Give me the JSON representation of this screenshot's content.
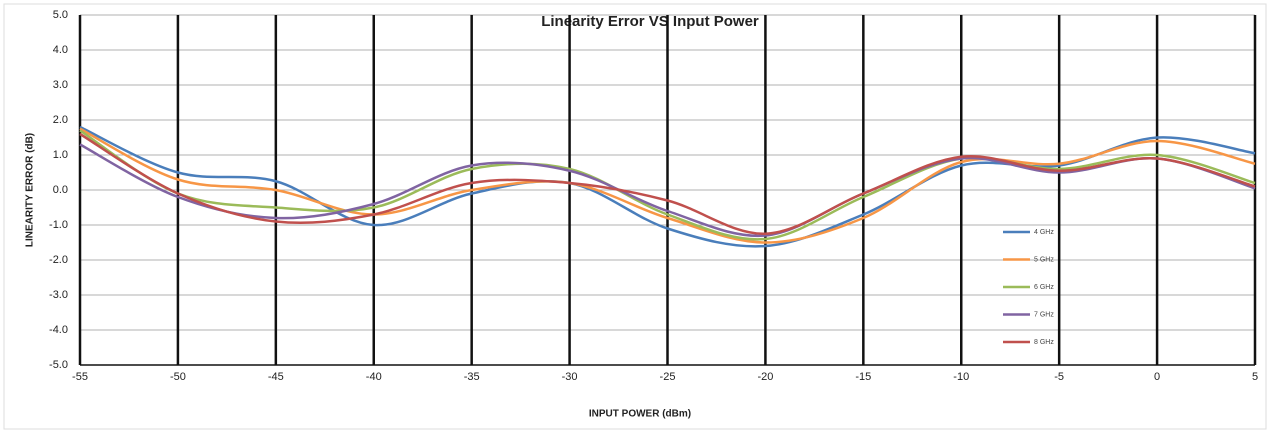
{
  "chart_data": {
    "type": "line",
    "title": "Linearity Error VS Input Power",
    "xlabel": "INPUT POWER (dBm)",
    "ylabel": "LINEARITY ERROR (dB)",
    "x": [
      -55,
      -50,
      -45,
      -40,
      -35,
      -30,
      -25,
      -20,
      -15,
      -10,
      -5,
      0,
      5
    ],
    "series": [
      {
        "name": "4 GHz",
        "color": "#4a7ebb",
        "values": [
          1.8,
          0.5,
          0.25,
          -1.0,
          -0.1,
          0.2,
          -1.1,
          -1.6,
          -0.7,
          0.7,
          0.7,
          1.5,
          1.05
        ]
      },
      {
        "name": "5 GHz",
        "color": "#f79646",
        "values": [
          1.75,
          0.3,
          0.0,
          -0.7,
          0.0,
          0.2,
          -0.8,
          -1.5,
          -0.8,
          0.8,
          0.75,
          1.4,
          0.75
        ]
      },
      {
        "name": "6 GHz",
        "color": "#9bbb59",
        "values": [
          1.7,
          -0.1,
          -0.5,
          -0.5,
          0.6,
          0.6,
          -0.7,
          -1.4,
          -0.2,
          0.9,
          0.6,
          1.0,
          0.2
        ]
      },
      {
        "name": "7 GHz",
        "color": "#8064a2",
        "values": [
          1.3,
          -0.2,
          -0.8,
          -0.4,
          0.7,
          0.55,
          -0.6,
          -1.3,
          -0.1,
          0.9,
          0.5,
          0.9,
          0.05
        ]
      },
      {
        "name": "8 GHz",
        "color": "#c0504d",
        "values": [
          1.6,
          -0.1,
          -0.9,
          -0.7,
          0.2,
          0.2,
          -0.3,
          -1.25,
          -0.1,
          0.95,
          0.55,
          0.9,
          0.1
        ]
      }
    ],
    "xlim": [
      -55,
      5
    ],
    "xticks": [
      -55,
      -50,
      -45,
      -40,
      -35,
      -30,
      -25,
      -20,
      -15,
      -10,
      -5,
      0,
      5
    ],
    "ylim": [
      -5,
      5
    ],
    "yticks": [
      {
        "value": -5,
        "label": "-5.0"
      },
      {
        "value": -4,
        "label": "-4.0"
      },
      {
        "value": -3,
        "label": "-3.0"
      },
      {
        "value": -2,
        "label": "-2.0"
      },
      {
        "value": -1,
        "label": "-1.0"
      },
      {
        "value": 0,
        "label": "0.0"
      },
      {
        "value": 1,
        "label": "1.0"
      },
      {
        "value": 2,
        "label": "2.0"
      },
      {
        "value": 3,
        "label": "3.0"
      },
      {
        "value": 4,
        "label": "4.0"
      },
      {
        "value": 5,
        "label": "5.0"
      }
    ],
    "grid": true,
    "legend": "right"
  }
}
